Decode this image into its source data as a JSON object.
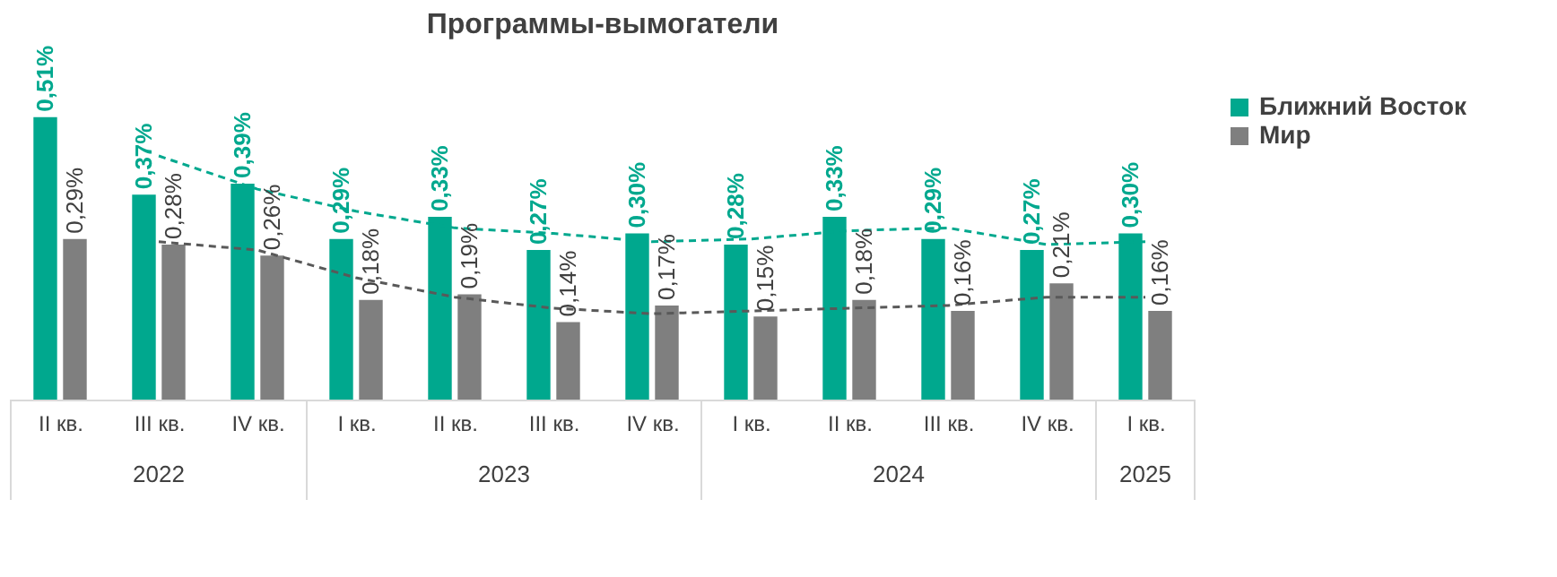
{
  "chart_data": {
    "type": "bar",
    "title": "Программы-вымогатели",
    "categories": [
      "II кв.",
      "III кв.",
      "IV кв.",
      "I кв.",
      "II кв.",
      "III кв.",
      "IV кв.",
      "I кв.",
      "II кв.",
      "III кв.",
      "IV кв.",
      "I кв."
    ],
    "series": [
      {
        "name": "Ближний Восток",
        "color": "#00a88e",
        "values": [
          0.51,
          0.37,
          0.39,
          0.29,
          0.33,
          0.27,
          0.3,
          0.28,
          0.33,
          0.29,
          0.27,
          0.3
        ],
        "value_labels": [
          "0,51%",
          "0,37%",
          "0,39%",
          "0,29%",
          "0,33%",
          "0,27%",
          "0,30%",
          "0,28%",
          "0,33%",
          "0,29%",
          "0,27%",
          "0,30%"
        ]
      },
      {
        "name": "Мир",
        "color": "#7f7f7f",
        "values": [
          0.29,
          0.28,
          0.26,
          0.18,
          0.19,
          0.14,
          0.17,
          0.15,
          0.18,
          0.16,
          0.21,
          0.16
        ],
        "value_labels": [
          "0,29%",
          "0,28%",
          "0,26%",
          "0,18%",
          "0,19%",
          "0,14%",
          "0,17%",
          "0,15%",
          "0,18%",
          "0,16%",
          "0,21%",
          "0,16%"
        ]
      },
      {
        "type": "line",
        "line_style": "dashed",
        "color": "#00a88e",
        "values": [
          null,
          0.44,
          0.38,
          0.34,
          0.31,
          0.3,
          0.285,
          0.29,
          0.305,
          0.31,
          0.28,
          0.285
        ]
      },
      {
        "type": "line",
        "line_style": "dashed",
        "color": "#595959",
        "values": [
          null,
          0.285,
          0.27,
          0.22,
          0.185,
          0.165,
          0.155,
          0.16,
          0.165,
          0.17,
          0.185,
          0.185
        ]
      }
    ],
    "annotations": [
      "2022",
      "2023",
      "2024",
      "2025"
    ],
    "legend": "right"
  }
}
